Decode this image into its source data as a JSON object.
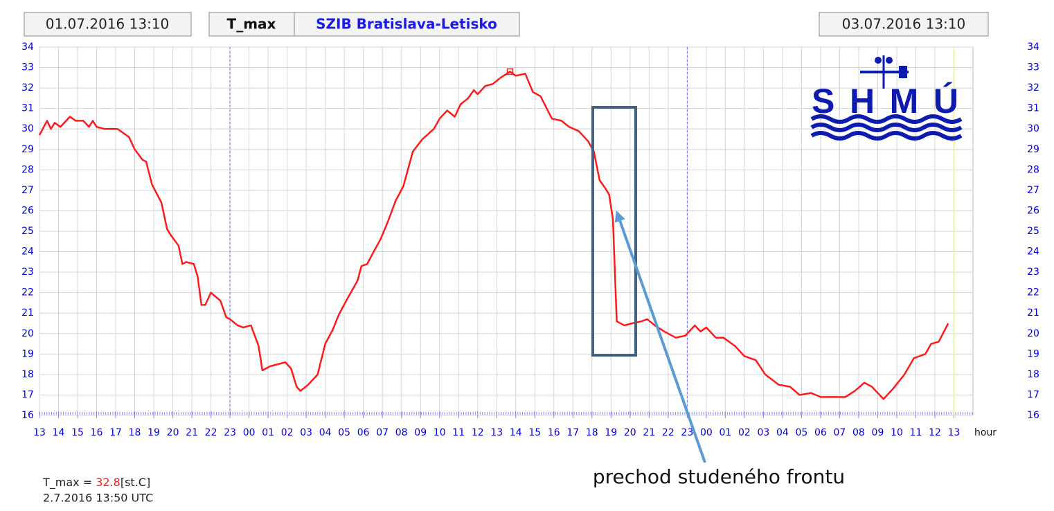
{
  "chart_data": {
    "type": "line",
    "start_time": "01.07.2016 13:10",
    "end_time": "03.07.2016 13:10",
    "station": "SZIB Bratislava-Letisko",
    "x_unit": "hour",
    "logo_text": "SHMÚ",
    "annotation": "prechod studeného frontu",
    "series": [
      {
        "name": "T_max",
        "color": "#ff1a1a",
        "x": [
          0,
          0.4,
          0.6,
          0.8,
          1.1,
          1.4,
          1.6,
          1.9,
          2.3,
          2.6,
          2.8,
          3.0,
          3.4,
          4.1,
          4.7,
          5.0,
          5.4,
          5.6,
          5.9,
          6.4,
          6.7,
          6.9,
          7.3,
          7.5,
          7.7,
          8.1,
          8.3,
          8.5,
          8.7,
          9.0,
          9.5,
          9.8,
          10.0,
          10.4,
          10.7,
          11.1,
          11.5,
          11.7,
          12.1,
          12.5,
          12.9,
          13.2,
          13.5,
          13.7,
          14.1,
          14.6,
          15.0,
          15.4,
          15.7,
          16.1,
          16.7,
          16.9,
          17.2,
          17.6,
          17.9,
          18.3,
          18.7,
          19.1,
          19.6,
          20.1,
          20.7,
          21.0,
          21.4,
          21.8,
          22.1,
          22.5,
          22.8,
          23.0,
          23.4,
          23.8,
          24.2,
          24.7,
          25.0,
          25.5,
          25.9,
          26.3,
          26.9,
          27.4,
          27.8,
          28.3,
          28.8,
          29.1,
          29.4,
          29.7,
          29.9,
          30.1,
          30.3,
          30.7,
          31.1,
          31.6,
          31.9,
          32.3,
          32.8,
          33.4,
          33.9,
          34.4,
          34.7,
          35.0,
          35.5,
          35.9,
          36.5,
          37.0,
          37.6,
          38.1,
          38.8,
          39.4,
          39.9,
          40.5,
          41.0,
          41.6,
          42.3,
          42.8,
          43.3,
          43.7,
          44.3,
          44.8,
          45.4,
          45.9,
          46.5,
          46.8,
          47.2,
          47.7
        ],
        "values": [
          29.7,
          30.4,
          30.0,
          30.3,
          30.1,
          30.4,
          30.6,
          30.4,
          30.4,
          30.1,
          30.4,
          30.1,
          30.0,
          30.0,
          29.6,
          29.0,
          28.5,
          28.4,
          27.3,
          26.4,
          25.1,
          24.8,
          24.3,
          23.4,
          23.5,
          23.4,
          22.8,
          21.4,
          21.4,
          22.0,
          21.6,
          20.8,
          20.7,
          20.4,
          20.3,
          20.4,
          19.4,
          18.2,
          18.4,
          18.5,
          18.6,
          18.3,
          17.4,
          17.2,
          17.5,
          18.0,
          19.5,
          20.2,
          20.9,
          21.6,
          22.6,
          23.3,
          23.4,
          24.1,
          24.6,
          25.5,
          26.5,
          27.2,
          28.9,
          29.5,
          30.0,
          30.5,
          30.9,
          30.6,
          31.2,
          31.5,
          31.9,
          31.7,
          32.1,
          32.2,
          32.5,
          32.8,
          32.6,
          32.7,
          31.8,
          31.6,
          30.5,
          30.4,
          30.1,
          29.9,
          29.4,
          28.9,
          27.5,
          27.1,
          26.8,
          25.6,
          20.6,
          20.4,
          20.5,
          20.6,
          20.7,
          20.4,
          20.1,
          19.8,
          19.9,
          20.4,
          20.1,
          20.3,
          19.8,
          19.8,
          19.4,
          18.9,
          18.7,
          18.0,
          17.5,
          17.4,
          17.0,
          17.1,
          16.9,
          16.9,
          16.9,
          17.2,
          17.6,
          17.4,
          16.8,
          17.3,
          18.0,
          18.8,
          19.0,
          19.5,
          19.6,
          20.5
        ]
      }
    ],
    "max_marker": {
      "x": 24.7,
      "value": 32.8
    },
    "readout": {
      "label": "T_max =",
      "unit": "[st.C]",
      "time": "2.7.2016 13:50 UTC"
    },
    "day_lines": [
      10,
      34
    ],
    "now_line": 48,
    "xlim": [
      0,
      49
    ],
    "ylim": [
      16,
      34
    ],
    "yticks": [
      16,
      17,
      18,
      19,
      20,
      21,
      22,
      23,
      24,
      25,
      26,
      27,
      28,
      29,
      30,
      31,
      32,
      33,
      34
    ],
    "xticks": [
      {
        "value": 0,
        "label": "13"
      },
      {
        "value": 1,
        "label": "14"
      },
      {
        "value": 2,
        "label": "15"
      },
      {
        "value": 3,
        "label": "16"
      },
      {
        "value": 4,
        "label": "17"
      },
      {
        "value": 5,
        "label": "18"
      },
      {
        "value": 6,
        "label": "19"
      },
      {
        "value": 7,
        "label": "20"
      },
      {
        "value": 8,
        "label": "21"
      },
      {
        "value": 9,
        "label": "22"
      },
      {
        "value": 10,
        "label": "23"
      },
      {
        "value": 11,
        "label": "00"
      },
      {
        "value": 12,
        "label": "01"
      },
      {
        "value": 13,
        "label": "02"
      },
      {
        "value": 14,
        "label": "03"
      },
      {
        "value": 15,
        "label": "04"
      },
      {
        "value": 16,
        "label": "05"
      },
      {
        "value": 17,
        "label": "06"
      },
      {
        "value": 18,
        "label": "07"
      },
      {
        "value": 19,
        "label": "08"
      },
      {
        "value": 20,
        "label": "09"
      },
      {
        "value": 21,
        "label": "10"
      },
      {
        "value": 22,
        "label": "11"
      },
      {
        "value": 23,
        "label": "12"
      },
      {
        "value": 24,
        "label": "13"
      },
      {
        "value": 25,
        "label": "14"
      },
      {
        "value": 26,
        "label": "15"
      },
      {
        "value": 27,
        "label": "16"
      },
      {
        "value": 28,
        "label": "17"
      },
      {
        "value": 29,
        "label": "18"
      },
      {
        "value": 30,
        "label": "19"
      },
      {
        "value": 31,
        "label": "20"
      },
      {
        "value": 32,
        "label": "21"
      },
      {
        "value": 33,
        "label": "22"
      },
      {
        "value": 34,
        "label": "23"
      },
      {
        "value": 35,
        "label": "00"
      },
      {
        "value": 36,
        "label": "01"
      },
      {
        "value": 37,
        "label": "02"
      },
      {
        "value": 38,
        "label": "03"
      },
      {
        "value": 39,
        "label": "04"
      },
      {
        "value": 40,
        "label": "05"
      },
      {
        "value": 41,
        "label": "06"
      },
      {
        "value": 42,
        "label": "07"
      },
      {
        "value": 43,
        "label": "08"
      },
      {
        "value": 44,
        "label": "09"
      },
      {
        "value": 45,
        "label": "10"
      },
      {
        "value": 46,
        "label": "11"
      },
      {
        "value": 47,
        "label": "12"
      },
      {
        "value": 48,
        "label": "13"
      }
    ],
    "grid": true
  }
}
